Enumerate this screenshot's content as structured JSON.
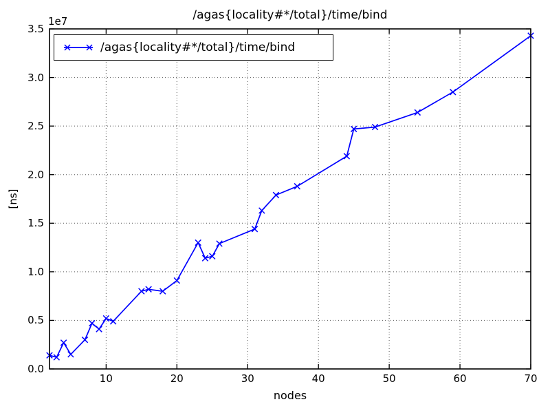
{
  "chart": {
    "title": "/agas{locality#*/total}/time/bind",
    "offset_text": "1e7",
    "xlabel": "nodes",
    "ylabel": "[ns]",
    "legend": {
      "label": "/agas{locality#*/total}/time/bind",
      "position": "upper left"
    },
    "colors": {
      "line": "#0000ff",
      "grid": "#555555",
      "axis": "#000000",
      "background": "#ffffff",
      "text": "#000000"
    }
  },
  "chart_data": {
    "type": "line",
    "title": "/agas{locality#*/total}/time/bind",
    "xlabel": "nodes",
    "ylabel": "[ns]",
    "offset_text": "1e7",
    "grid": true,
    "legend_position": "upper left",
    "marker": "x",
    "xlim": [
      2,
      70
    ],
    "ylim": [
      0,
      35000000
    ],
    "xticks": [
      10,
      20,
      30,
      40,
      50,
      60,
      70
    ],
    "xticklabels": [
      "10",
      "20",
      "30",
      "40",
      "50",
      "60",
      "70"
    ],
    "yticks": [
      0,
      5000000,
      10000000,
      15000000,
      20000000,
      25000000,
      30000000,
      35000000
    ],
    "yticklabels": [
      "0.0",
      "0.5",
      "1.0",
      "1.5",
      "2.0",
      "2.5",
      "3.0",
      "3.5"
    ],
    "series": [
      {
        "name": "/agas{locality#*/total}/time/bind",
        "x": [
          2,
          3,
          4,
          5,
          7,
          8,
          9,
          10,
          11,
          15,
          16,
          18,
          20,
          23,
          24,
          25,
          26,
          31,
          32,
          34,
          37,
          44,
          45,
          48,
          54,
          59,
          70
        ],
        "y": [
          1400000,
          1200000,
          2700000,
          1500000,
          3000000,
          4700000,
          4100000,
          5200000,
          4900000,
          8000000,
          8200000,
          8000000,
          9100000,
          13000000,
          11400000,
          11600000,
          12900000,
          14400000,
          16300000,
          17900000,
          18800000,
          21900000,
          24700000,
          24900000,
          26400000,
          28500000,
          34300000
        ]
      }
    ]
  }
}
